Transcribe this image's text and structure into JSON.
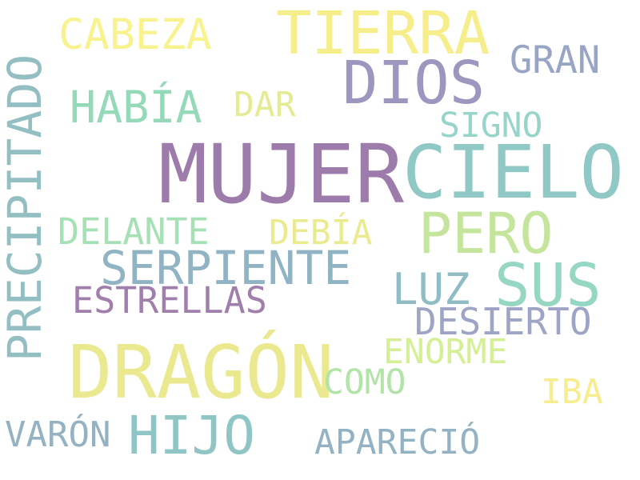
{
  "words": [
    {
      "text": "MUJER",
      "color": "#9d7bab"
    },
    {
      "text": "CIELO",
      "color": "#8fc8c4"
    },
    {
      "text": "DRAGÓN",
      "color": "#ebe98f"
    },
    {
      "text": "TIERRA",
      "color": "#f6ee8b"
    },
    {
      "text": "DIOS",
      "color": "#9d97bf"
    },
    {
      "text": "PERO",
      "color": "#c4e59b"
    },
    {
      "text": "SUS",
      "color": "#95d7c2"
    },
    {
      "text": "HIJO",
      "color": "#8fc5c4"
    },
    {
      "text": "PRECIPITADO",
      "color": "#93bfc3"
    },
    {
      "text": "SERPIENTE",
      "color": "#90b4c4"
    },
    {
      "text": "HABÍA",
      "color": "#95dab8"
    },
    {
      "text": "CABEZA",
      "color": "#f8f38e"
    },
    {
      "text": "LUZ",
      "color": "#90bcc6"
    },
    {
      "text": "GRAN",
      "color": "#99a5c4"
    },
    {
      "text": "DESIERTO",
      "color": "#9ea4c5"
    },
    {
      "text": "ESTRELLAS",
      "color": "#a07fac"
    },
    {
      "text": "DELANTE",
      "color": "#a6e0b5"
    },
    {
      "text": "DEBÍA",
      "color": "#eaeb8f"
    },
    {
      "text": "ENORME",
      "color": "#d5ef95"
    },
    {
      "text": "APARECIÓ",
      "color": "#93b3c4"
    },
    {
      "text": "VARÓN",
      "color": "#95b2c3"
    },
    {
      "text": "COMO",
      "color": "#b2e4a7"
    },
    {
      "text": "SIGNO",
      "color": "#97d4c9"
    },
    {
      "text": "DAR",
      "color": "#e4eb93"
    },
    {
      "text": "IBA",
      "color": "#f6ee8e"
    }
  ]
}
